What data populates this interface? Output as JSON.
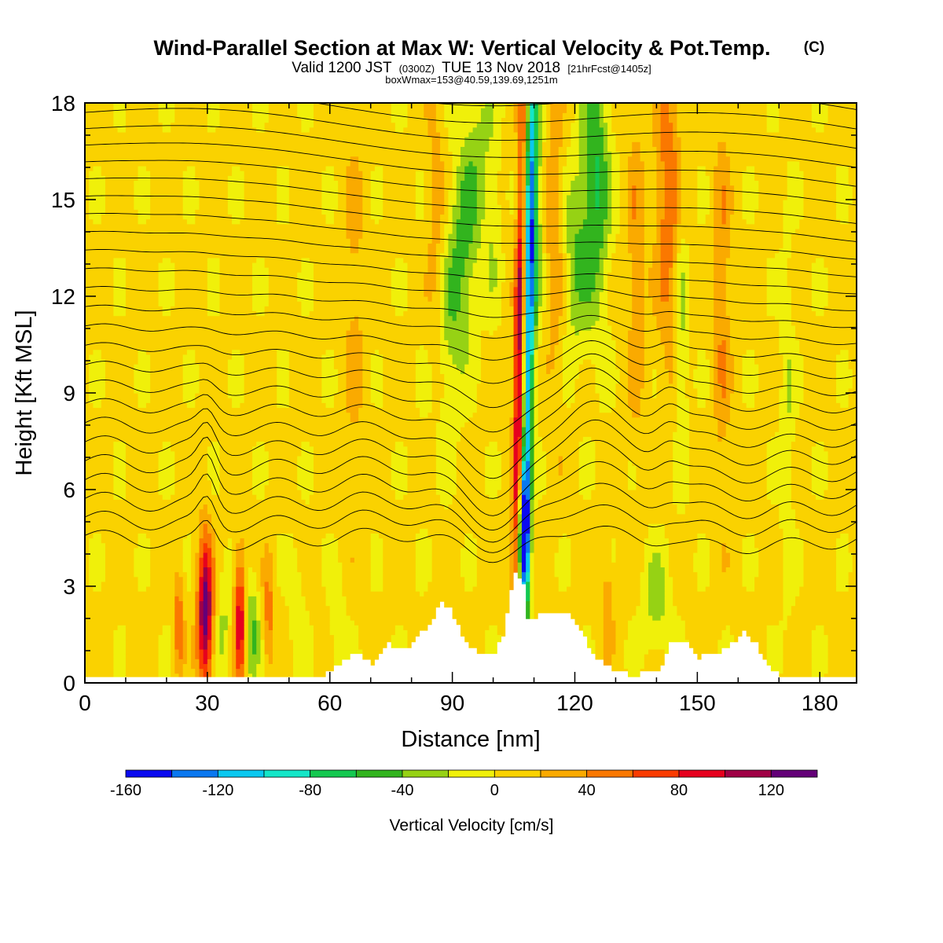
{
  "title": "Wind-Parallel Section at Max W: Vertical Velocity & Pot.Temp.",
  "title_unit": "(C)",
  "subtitle_main_a": "Valid 1200 JST",
  "subtitle_small_a": "(0300Z)",
  "subtitle_main_b": "TUE 13 Nov 2018",
  "subtitle_small_b": "[21hrFcst@1405z]",
  "subtitle_line2": "boxWmax=153@40.59,139.69,1251m",
  "chart_data": {
    "type": "heatmap",
    "xlabel": "Distance [nm]",
    "ylabel": "Height [Kft MSL]",
    "xlim": [
      0,
      189
    ],
    "ylim": [
      0,
      18
    ],
    "x_ticks": [
      "0",
      "30",
      "60",
      "90",
      "120",
      "150",
      "180"
    ],
    "y_ticks": [
      "0",
      "3",
      "6",
      "9",
      "12",
      "15",
      "18"
    ],
    "colorbar": {
      "label": "Vertical Velocity [cm/s]",
      "boundaries": [
        -160,
        -140,
        -120,
        -100,
        -80,
        -60,
        -40,
        -20,
        0,
        20,
        40,
        60,
        80,
        100,
        120,
        140
      ],
      "tick_labels": [
        "-160",
        "-120",
        "-80",
        "-40",
        "0",
        "40",
        "80",
        "120"
      ],
      "colors": [
        "#0a0af0",
        "#0a78f0",
        "#0ac8f0",
        "#14e6c8",
        "#14c850",
        "#32b41e",
        "#96d214",
        "#f0f00a",
        "#fad200",
        "#faaa00",
        "#fa7800",
        "#fa3c00",
        "#e6001e",
        "#a00046",
        "#640078"
      ]
    },
    "terrain_kft": [
      [
        0,
        0.25
      ],
      [
        58,
        0.25
      ],
      [
        61,
        0.5
      ],
      [
        66,
        0.9
      ],
      [
        70,
        0.6
      ],
      [
        74,
        1.2
      ],
      [
        78,
        1.0
      ],
      [
        84,
        1.8
      ],
      [
        87,
        2.5
      ],
      [
        89,
        2.3
      ],
      [
        93,
        1.2
      ],
      [
        96,
        0.9
      ],
      [
        100,
        0.9
      ],
      [
        102,
        1.5
      ],
      [
        105,
        3.5
      ],
      [
        107,
        3.0
      ],
      [
        108,
        2.0
      ],
      [
        111,
        2.1
      ],
      [
        113,
        2.2
      ],
      [
        117,
        2.2
      ],
      [
        121,
        1.7
      ],
      [
        124,
        0.9
      ],
      [
        128,
        0.45
      ],
      [
        133,
        0.25
      ],
      [
        140,
        0.3
      ],
      [
        143,
        1.2
      ],
      [
        147,
        1.2
      ],
      [
        150,
        0.8
      ],
      [
        154,
        0.9
      ],
      [
        158,
        1.2
      ],
      [
        161,
        1.6
      ],
      [
        164,
        1.2
      ],
      [
        167,
        0.5
      ],
      [
        170,
        0.25
      ],
      [
        189,
        0.25
      ]
    ]
  }
}
